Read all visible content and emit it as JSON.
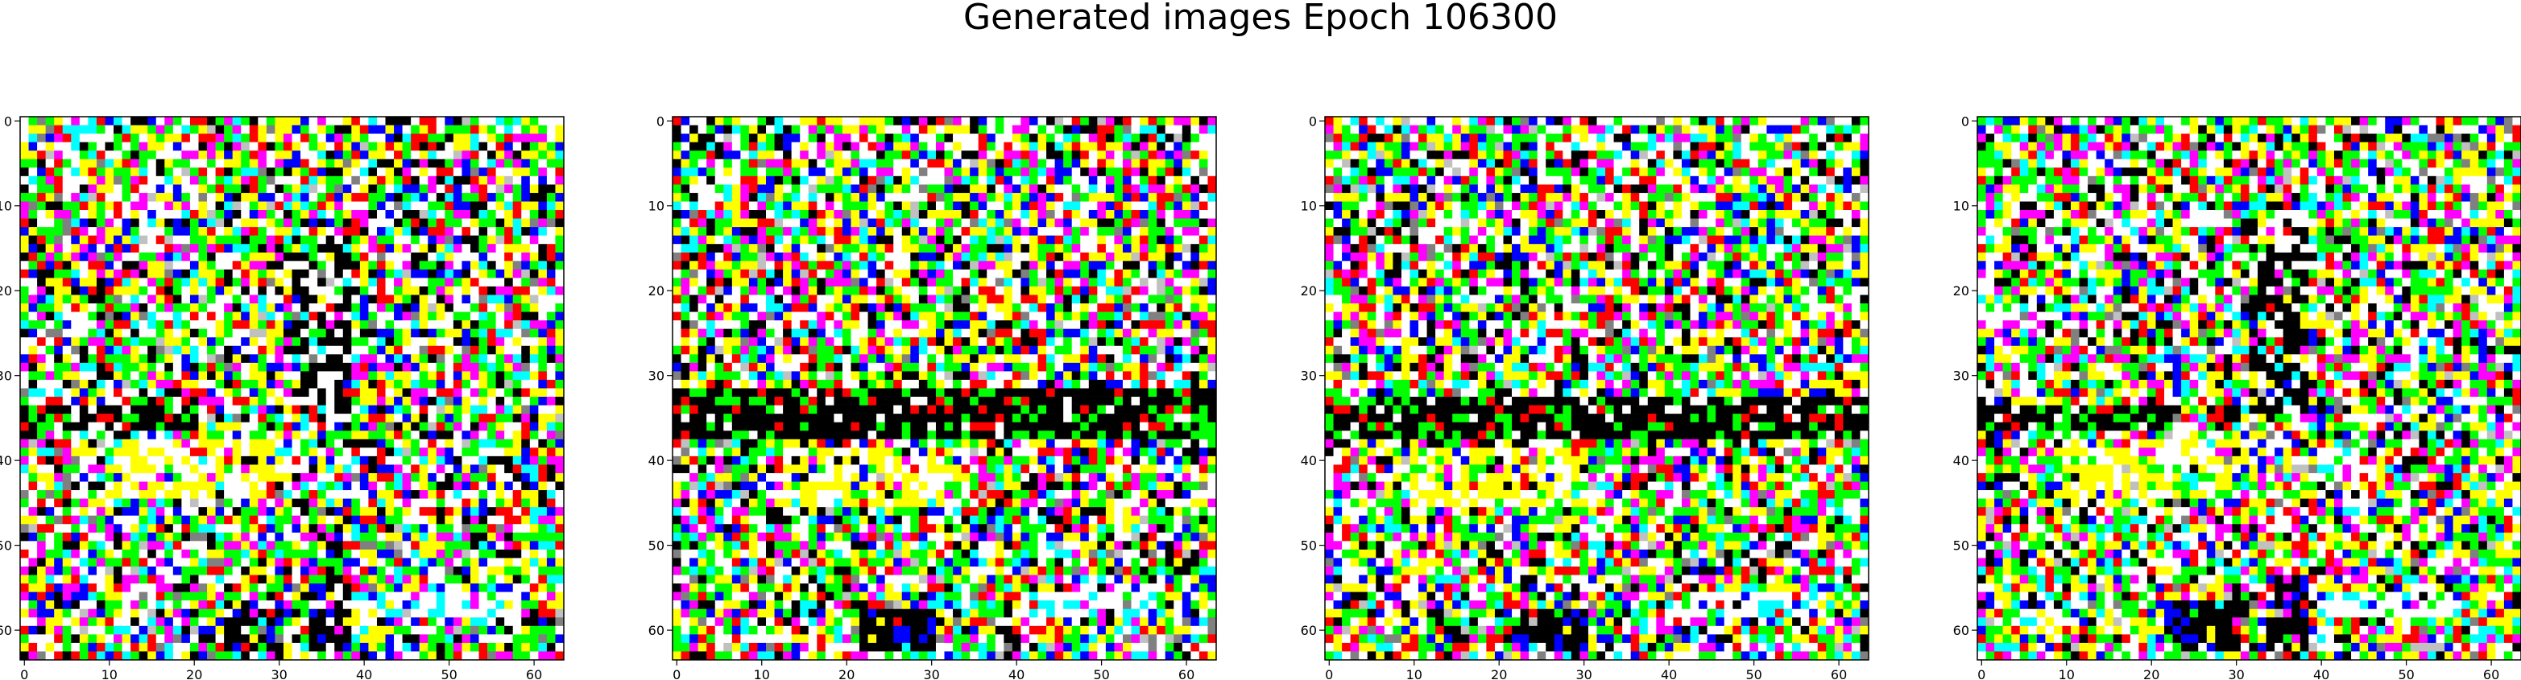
{
  "title": "Generated images Epoch 106300",
  "chart_data": {
    "type": "heatmap",
    "title": "Generated images Epoch 106300",
    "panel_count": 4,
    "image_size": 64,
    "xticks": [
      "0",
      "10",
      "20",
      "30",
      "40",
      "50",
      "60"
    ],
    "yticks": [
      "0",
      "10",
      "20",
      "30",
      "40",
      "50",
      "60"
    ],
    "xlim": [
      -0.5,
      63.5
    ],
    "ylim": [
      63.5,
      -0.5
    ],
    "palette": [
      "#000000",
      "#ffffff",
      "#ff0000",
      "#00ff00",
      "#0000ff",
      "#ffff00",
      "#ff00ff",
      "#00ffff",
      "#808080",
      "#c0c0c0"
    ],
    "panels": [
      {
        "seed": 101,
        "features": [
          {
            "kind": "black_band",
            "rows": [
              34,
              36
            ],
            "cols": [
              0,
              20
            ]
          },
          {
            "kind": "yellow_zone",
            "rows": [
              38,
              44
            ],
            "cols": [
              10,
              30
            ]
          },
          {
            "kind": "black_column",
            "rows": [
              14,
              34
            ],
            "cols": [
              32,
              38
            ]
          },
          {
            "kind": "white_band",
            "rows": [
              56,
              58
            ],
            "cols": [
              40,
              56
            ]
          },
          {
            "kind": "dark_blob",
            "rows": [
              57,
              62
            ],
            "cols": [
              22,
              30
            ]
          },
          {
            "kind": "dark_blob",
            "rows": [
              54,
              62
            ],
            "cols": [
              34,
              38
            ]
          }
        ]
      },
      {
        "seed": 202,
        "features": [
          {
            "kind": "black_band",
            "rows": [
              32,
              37
            ],
            "cols": [
              0,
              63
            ]
          },
          {
            "kind": "yellow_zone",
            "rows": [
              39,
              45
            ],
            "cols": [
              14,
              34
            ]
          },
          {
            "kind": "white_band",
            "rows": [
              56,
              58
            ],
            "cols": [
              40,
              56
            ]
          },
          {
            "kind": "dark_blob",
            "rows": [
              58,
              62
            ],
            "cols": [
              22,
              30
            ]
          }
        ]
      },
      {
        "seed": 303,
        "features": [
          {
            "kind": "black_band",
            "rows": [
              33,
              37
            ],
            "cols": [
              0,
              63
            ]
          },
          {
            "kind": "yellow_zone",
            "rows": [
              39,
              45
            ],
            "cols": [
              10,
              30
            ]
          },
          {
            "kind": "white_band",
            "rows": [
              56,
              58
            ],
            "cols": [
              40,
              56
            ]
          },
          {
            "kind": "dark_blob",
            "rows": [
              58,
              62
            ],
            "cols": [
              22,
              30
            ]
          }
        ]
      },
      {
        "seed": 404,
        "features": [
          {
            "kind": "black_band",
            "rows": [
              34,
              36
            ],
            "cols": [
              0,
              22
            ]
          },
          {
            "kind": "yellow_zone",
            "rows": [
              38,
              44
            ],
            "cols": [
              10,
              30
            ]
          },
          {
            "kind": "black_column",
            "rows": [
              12,
              34
            ],
            "cols": [
              32,
              38
            ]
          },
          {
            "kind": "white_band",
            "rows": [
              56,
              58
            ],
            "cols": [
              40,
              56
            ]
          },
          {
            "kind": "dark_blob",
            "rows": [
              57,
              62
            ],
            "cols": [
              22,
              30
            ]
          },
          {
            "kind": "dark_blob",
            "rows": [
              54,
              62
            ],
            "cols": [
              34,
              38
            ]
          }
        ]
      }
    ]
  }
}
